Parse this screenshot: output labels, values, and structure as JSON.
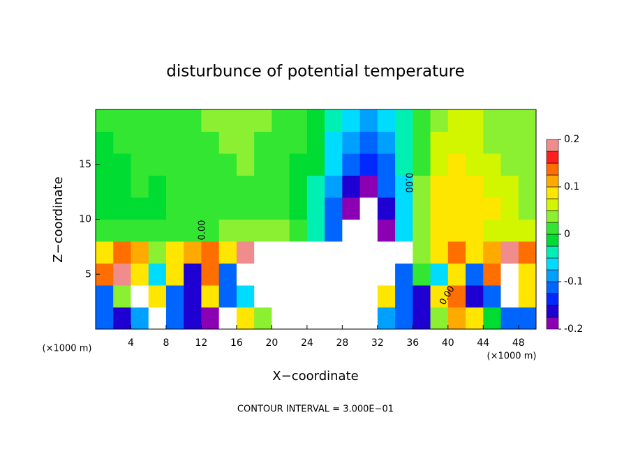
{
  "chart_data": {
    "type": "heatmap",
    "title": "disturbunce of potential temperature",
    "x_label": "X−coordinate",
    "y_label": "Z−coordinate",
    "x_unit_label": "(×1000 m)",
    "x_unit_label_right": "(×1000 m)",
    "footnote": "CONTOUR INTERVAL = 3.000E−01",
    "contour_labels": [
      "0.00",
      "0.00",
      "0.00"
    ],
    "xlim": [
      0,
      50
    ],
    "ylim": [
      0,
      20
    ],
    "xticks": [
      4,
      8,
      12,
      16,
      20,
      24,
      28,
      32,
      36,
      40,
      44,
      48
    ],
    "yticks": [
      5,
      10,
      15
    ],
    "x": [
      1,
      3,
      5,
      7,
      9,
      11,
      13,
      15,
      17,
      19,
      21,
      23,
      25,
      27,
      29,
      31,
      33,
      35,
      37,
      39,
      41,
      43,
      45,
      47,
      49
    ],
    "y": [
      1,
      3,
      5,
      7,
      9,
      11,
      13,
      15,
      17,
      19
    ],
    "z": [
      [
        -0.12,
        -0.15,
        -0.08,
        0.3,
        -0.1,
        -0.15,
        -0.2,
        -0.25,
        0.1,
        0.05,
        0.4,
        0.35,
        0.3,
        -0.3,
        0.35,
        0.3,
        -0.08,
        -0.1,
        -0.15,
        0.05,
        0.12,
        0.1,
        0.0,
        -0.1,
        -0.12
      ],
      [
        -0.1,
        0.05,
        0.25,
        0.1,
        -0.1,
        -0.15,
        0.1,
        -0.12,
        -0.05,
        0.3,
        0.35,
        0.3,
        -0.3,
        0.4,
        -0.3,
        0.3,
        0.1,
        -0.12,
        -0.15,
        0.1,
        0.15,
        -0.15,
        -0.1,
        0.25,
        0.1
      ],
      [
        0.15,
        0.2,
        0.1,
        -0.05,
        0.1,
        -0.15,
        0.15,
        -0.1,
        0.3,
        0.4,
        0.3,
        -0.3,
        0.35,
        0.4,
        -0.3,
        0.3,
        0.35,
        -0.1,
        0.02,
        -0.05,
        0.1,
        -0.1,
        0.15,
        0.25,
        0.1
      ],
      [
        0.1,
        0.15,
        0.12,
        0.05,
        0.08,
        0.12,
        0.15,
        0.1,
        0.2,
        0.25,
        0.3,
        -0.3,
        -0.35,
        0.3,
        -0.3,
        0.35,
        -0.3,
        0.25,
        0.05,
        0.1,
        0.15,
        0.1,
        0.12,
        0.2,
        0.15
      ],
      [
        0.02,
        0.01,
        0.02,
        0.02,
        0.02,
        0.02,
        0.02,
        0.03,
        0.03,
        0.04,
        0.04,
        0.02,
        -0.03,
        -0.12,
        -0.25,
        -0.3,
        -0.18,
        -0.06,
        0.04,
        0.1,
        0.1,
        0.08,
        0.07,
        0.06,
        0.06
      ],
      [
        0.0,
        -0.01,
        0.0,
        0.0,
        0.01,
        0.01,
        0.02,
        0.02,
        0.02,
        0.02,
        0.01,
        0.0,
        -0.04,
        -0.1,
        -0.19,
        -0.22,
        -0.15,
        -0.06,
        0.03,
        0.09,
        0.1,
        0.09,
        0.08,
        0.06,
        0.05
      ],
      [
        0.0,
        0.0,
        0.01,
        0.0,
        0.01,
        0.02,
        0.02,
        0.02,
        0.02,
        0.02,
        0.01,
        0.0,
        -0.03,
        -0.08,
        -0.15,
        -0.18,
        -0.12,
        -0.05,
        0.03,
        0.08,
        0.09,
        0.08,
        0.07,
        0.06,
        0.05
      ],
      [
        0.0,
        0.0,
        0.01,
        0.01,
        0.02,
        0.02,
        0.02,
        0.02,
        0.03,
        0.02,
        0.01,
        0.0,
        -0.02,
        -0.07,
        -0.12,
        -0.14,
        -0.1,
        -0.04,
        0.02,
        0.07,
        0.08,
        0.07,
        0.06,
        0.05,
        0.04
      ],
      [
        0.0,
        0.01,
        0.01,
        0.01,
        0.02,
        0.02,
        0.02,
        0.03,
        0.03,
        0.02,
        0.02,
        0.01,
        -0.01,
        -0.05,
        -0.09,
        -0.11,
        -0.08,
        -0.04,
        0.02,
        0.06,
        0.07,
        0.06,
        0.05,
        0.05,
        0.04
      ],
      [
        0.02,
        0.02,
        0.01,
        0.01,
        0.02,
        0.02,
        0.03,
        0.03,
        0.03,
        0.03,
        0.02,
        0.01,
        0.0,
        -0.03,
        -0.06,
        -0.08,
        -0.06,
        -0.03,
        0.02,
        0.05,
        0.06,
        0.06,
        0.05,
        0.04,
        0.03
      ]
    ],
    "out_of_range_color": "#ffffff",
    "colorbar": {
      "levels": [
        -0.2,
        -0.175,
        -0.15,
        -0.125,
        -0.1,
        -0.075,
        -0.05,
        -0.025,
        0,
        0.025,
        0.05,
        0.075,
        0.1,
        0.125,
        0.15,
        0.175,
        0.2
      ],
      "colors": [
        "#8c00b4",
        "#1e00d2",
        "#0028ff",
        "#0064ff",
        "#00a0ff",
        "#00dcff",
        "#00f0b4",
        "#00dc32",
        "#32e632",
        "#8cf032",
        "#d2f500",
        "#ffe600",
        "#ffaa00",
        "#ff6e00",
        "#ff1e1e",
        "#f08c8c"
      ],
      "ticks": [
        0.2,
        0.1,
        0,
        -0.1,
        -0.2
      ]
    }
  }
}
